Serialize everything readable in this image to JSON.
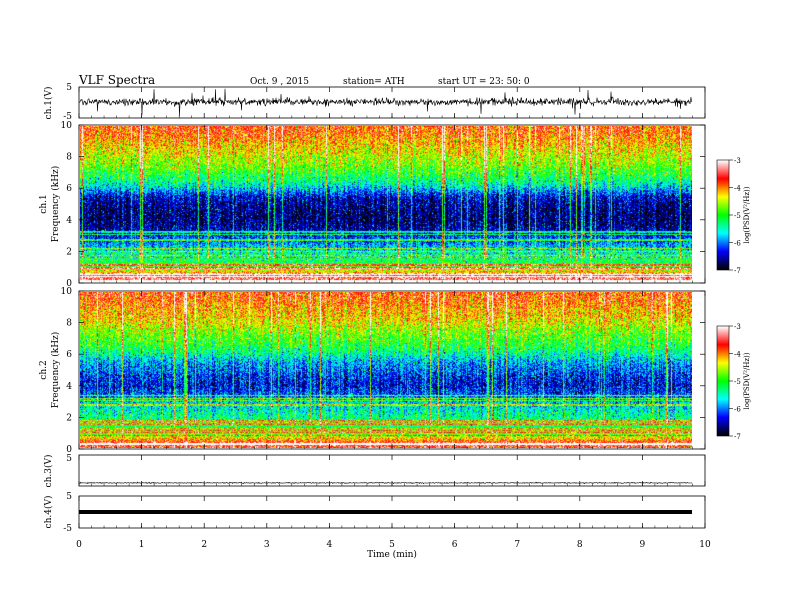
{
  "header": {
    "title": "VLF  Spectra",
    "date": "Oct. 9  , 2015",
    "station": "station= ATH",
    "start": "start  UT  =    23: 50: 0"
  },
  "chart_data": [
    {
      "type": "line",
      "id": "ch1-waveform",
      "ylabel": "ch.1(V)",
      "ylim": [
        -5,
        5
      ],
      "yticks": [
        "5",
        "-5"
      ],
      "x_range_min": [
        0,
        9.8
      ],
      "baseline_v": 0.2,
      "line_color": "#000000"
    },
    {
      "type": "heatmap",
      "id": "ch1-spectrogram",
      "ylabel_top": "ch.1",
      "ylabel": "Frequency  (kHz)",
      "ylim": [
        0,
        10
      ],
      "yticks": [
        "0",
        "2",
        "4",
        "6",
        "8",
        "10"
      ],
      "x_range_min": [
        0,
        9.8
      ],
      "band_profile_khz_logpsd": [
        [
          0.3,
          -3.4
        ],
        [
          0.6,
          -4.2
        ],
        [
          1.0,
          -5.0
        ],
        [
          1.5,
          -5.3
        ],
        [
          2.0,
          -5.6
        ],
        [
          2.5,
          -6.0
        ],
        [
          3.0,
          -6.3
        ],
        [
          3.5,
          -6.6
        ],
        [
          4.0,
          -6.7
        ],
        [
          4.5,
          -6.7
        ],
        [
          5.0,
          -6.6
        ],
        [
          5.5,
          -6.4
        ],
        [
          6.0,
          -5.8
        ],
        [
          6.5,
          -5.3
        ],
        [
          7.0,
          -5.0
        ],
        [
          7.5,
          -4.7
        ],
        [
          8.0,
          -4.5
        ],
        [
          8.5,
          -4.3
        ],
        [
          9.0,
          -4.1
        ],
        [
          9.5,
          -3.9
        ],
        [
          10.0,
          -3.8
        ]
      ]
    },
    {
      "type": "heatmap",
      "id": "ch2-spectrogram",
      "ylabel_top": "ch.2",
      "ylabel": "Frequency  (kHz)",
      "ylim": [
        0,
        10
      ],
      "yticks": [
        "0",
        "2",
        "4",
        "6",
        "8",
        "10"
      ],
      "x_range_min": [
        0,
        9.8
      ],
      "band_profile_khz_logpsd": [
        [
          0.3,
          -3.6
        ],
        [
          0.6,
          -4.3
        ],
        [
          1.0,
          -5.0
        ],
        [
          1.5,
          -5.2
        ],
        [
          2.0,
          -5.4
        ],
        [
          2.5,
          -5.6
        ],
        [
          3.0,
          -5.8
        ],
        [
          3.5,
          -6.2
        ],
        [
          4.0,
          -6.4
        ],
        [
          4.5,
          -6.3
        ],
        [
          5.0,
          -6.1
        ],
        [
          5.5,
          -5.9
        ],
        [
          6.0,
          -5.5
        ],
        [
          6.5,
          -5.1
        ],
        [
          7.0,
          -4.9
        ],
        [
          7.5,
          -4.7
        ],
        [
          8.0,
          -4.4
        ],
        [
          8.5,
          -4.2
        ],
        [
          9.0,
          -4.1
        ],
        [
          9.5,
          -3.9
        ],
        [
          10.0,
          -3.8
        ]
      ]
    },
    {
      "type": "line",
      "id": "ch3-waveform",
      "ylabel": "ch.3(V)",
      "ylim": [
        -5,
        5
      ],
      "yticks": [
        "5"
      ],
      "x_range_min": [
        0,
        9.8
      ],
      "baseline_v": -4.0,
      "line_color": "#000000"
    },
    {
      "type": "line",
      "id": "ch4-waveform",
      "ylabel": "ch.4(V)",
      "ylim": [
        -5,
        5
      ],
      "yticks": [
        "5",
        "-5"
      ],
      "x_range_min": [
        0,
        9.8
      ],
      "baseline_v": 0.0,
      "line_color": "#000000"
    }
  ],
  "colorbars": [
    {
      "id": "ch1-colorbar",
      "label": "log(PSD(V²/Hz))",
      "range": [
        -7,
        -3
      ],
      "ticks": [
        "-3",
        "-4",
        "-5",
        "-6",
        "-7"
      ]
    },
    {
      "id": "ch2-colorbar",
      "label": "log(PSD(V²/Hz))",
      "range": [
        -7,
        -3
      ],
      "ticks": [
        "-3",
        "-4",
        "-5",
        "-6",
        "-7"
      ]
    }
  ],
  "x_axis": {
    "label": "Time  (min)",
    "range": [
      0,
      10
    ],
    "ticks": [
      "0",
      "1",
      "2",
      "3",
      "4",
      "5",
      "6",
      "7",
      "8",
      "9",
      "10"
    ]
  },
  "colors": {
    "colormap": [
      "#000000",
      "#0000ff",
      "#00ffff",
      "#00ff00",
      "#ffff00",
      "#ff0000",
      "#ffffff"
    ]
  }
}
